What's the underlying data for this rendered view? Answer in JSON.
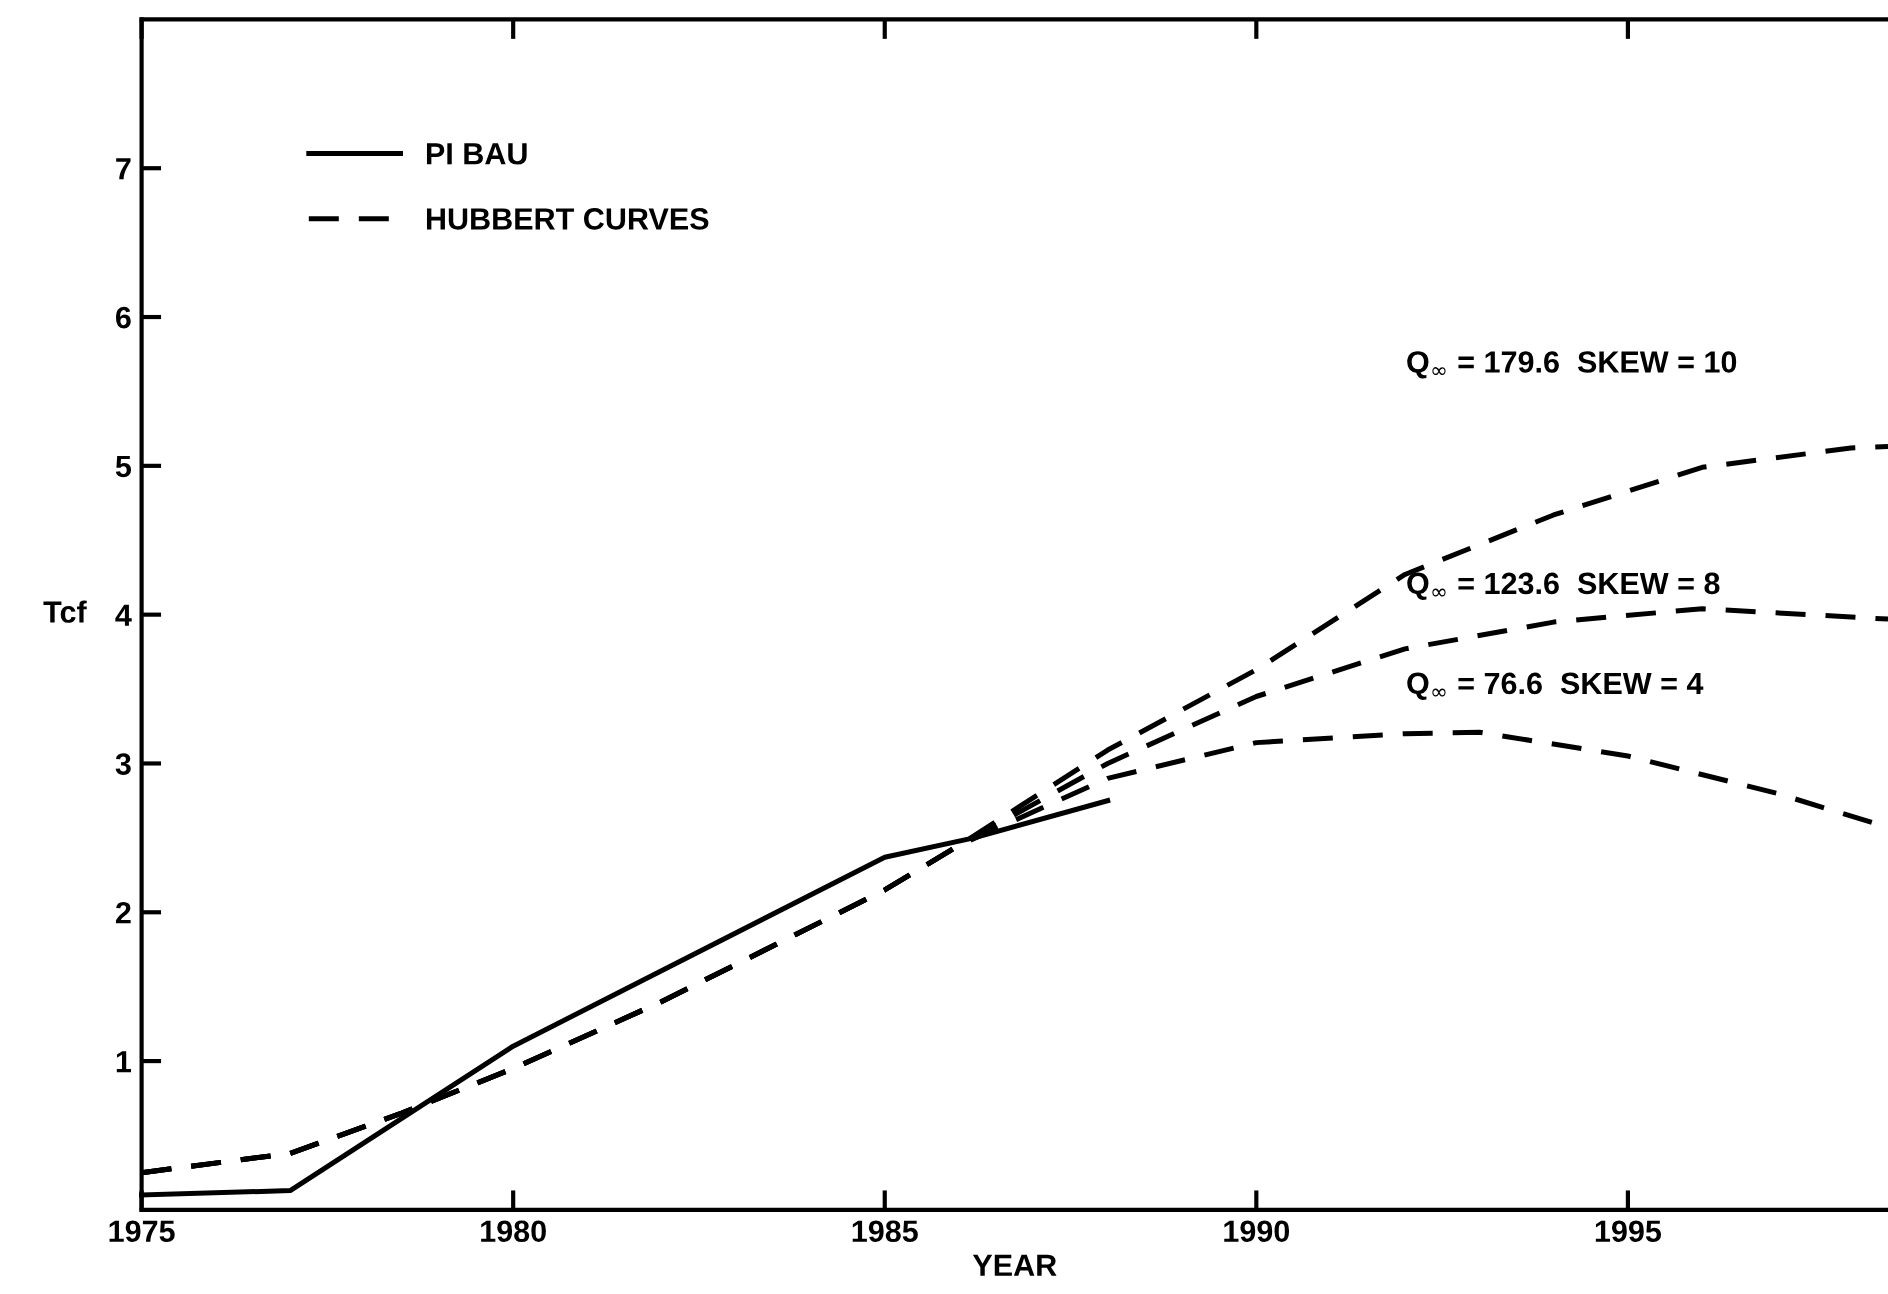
{
  "chart_data": {
    "type": "line",
    "xlabel": "YEAR",
    "ylabel": "Tcf",
    "xlim": [
      1975,
      1998.5
    ],
    "ylim": [
      0,
      8
    ],
    "xticks": [
      1975,
      1980,
      1985,
      1990,
      1995
    ],
    "yticks": [
      1,
      2,
      3,
      4,
      5,
      6,
      7
    ],
    "grid": false,
    "legend": "top left",
    "marker": "none",
    "series": [
      {
        "name": "PI BAU",
        "color": "#000000",
        "line_style": "solid",
        "x": [
          1975,
          1977,
          1980,
          1985,
          1986.2,
          1988
        ],
        "values": [
          0.1,
          0.13,
          1.1,
          2.37,
          2.5,
          2.75
        ]
      },
      {
        "name": "HUBBERT CURVES",
        "color": "#000000",
        "line_style": "dashed",
        "x": [
          1975,
          1977,
          1978.5,
          1980,
          1982,
          1985,
          1986,
          1988,
          1990,
          1992,
          1993,
          1995,
          1997,
          1998.5
        ],
        "values": [
          0.25,
          0.38,
          0.65,
          0.95,
          1.4,
          2.15,
          2.45,
          2.9,
          3.14,
          3.2,
          3.21,
          3.05,
          2.8,
          2.57
        ]
      },
      {
        "color": "#000000",
        "line_style": "dashed",
        "x": [
          1975,
          1977,
          1978.5,
          1980,
          1982,
          1985,
          1986,
          1988,
          1990,
          1992,
          1994,
          1996,
          1998.5
        ],
        "values": [
          0.25,
          0.38,
          0.65,
          0.95,
          1.4,
          2.15,
          2.45,
          3.0,
          3.45,
          3.77,
          3.95,
          4.04,
          3.97
        ]
      },
      {
        "color": "#000000",
        "line_style": "dashed",
        "x": [
          1975,
          1977,
          1978.5,
          1980,
          1982,
          1985,
          1986,
          1988,
          1990,
          1992,
          1994,
          1996,
          1998,
          1998.5
        ],
        "values": [
          0.25,
          0.38,
          0.65,
          0.95,
          1.4,
          2.15,
          2.45,
          3.09,
          3.63,
          4.27,
          4.67,
          4.99,
          5.12,
          5.13
        ]
      }
    ],
    "annotations": [
      "Q$_{∞}$ = 179.6  SKEW = 10",
      "Q$_{∞}$ = 123.6  SKEW = 8",
      "Q$_{∞}$ = 76.6  SKEW = 4"
    ]
  }
}
